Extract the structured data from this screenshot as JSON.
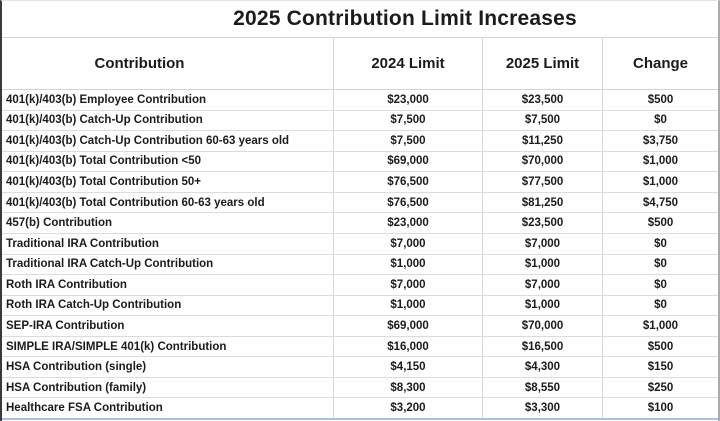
{
  "chart_data": {
    "type": "table",
    "title": "2025 Contribution Limit Increases",
    "columns": [
      "Contribution",
      "2024 Limit",
      "2025 Limit",
      "Change"
    ],
    "rows": [
      [
        "401(k)/403(b) Employee Contribution",
        "$23,000",
        "$23,500",
        "$500"
      ],
      [
        "401(k)/403(b) Catch-Up Contribution",
        "$7,500",
        "$7,500",
        "$0"
      ],
      [
        "401(k)/403(b) Catch-Up Contribution 60-63 years old",
        "$7,500",
        "$11,250",
        "$3,750"
      ],
      [
        "401(k)/403(b) Total Contribution <50",
        "$69,000",
        "$70,000",
        "$1,000"
      ],
      [
        "401(k)/403(b) Total Contribution 50+",
        "$76,500",
        "$77,500",
        "$1,000"
      ],
      [
        "401(k)/403(b) Total Contribution 60-63 years old",
        "$76,500",
        "$81,250",
        "$4,750"
      ],
      [
        "457(b) Contribution",
        "$23,000",
        "$23,500",
        "$500"
      ],
      [
        "Traditional IRA Contribution",
        "$7,000",
        "$7,000",
        "$0"
      ],
      [
        "Traditional IRA Catch-Up Contribution",
        "$1,000",
        "$1,000",
        "$0"
      ],
      [
        "Roth IRA Contribution",
        "$7,000",
        "$7,000",
        "$0"
      ],
      [
        "Roth IRA Catch-Up Contribution",
        "$1,000",
        "$1,000",
        "$0"
      ],
      [
        "SEP-IRA Contribution",
        "$69,000",
        "$70,000",
        "$1,000"
      ],
      [
        "SIMPLE IRA/SIMPLE 401(k) Contribution",
        "$16,000",
        "$16,500",
        "$500"
      ],
      [
        "HSA Contribution (single)",
        "$4,150",
        "$4,300",
        "$150"
      ],
      [
        "HSA Contribution (family)",
        "$8,300",
        "$8,550",
        "$250"
      ],
      [
        "Healthcare FSA Contribution",
        "$3,200",
        "$3,300",
        "$100"
      ]
    ],
    "layout": {
      "grid": "on",
      "value_alignment": "center",
      "label_alignment": "left"
    }
  },
  "colors": {
    "background": "#ffffff",
    "text": "#1b1b1b",
    "gridline": "#d4d4d4",
    "bottom_edge_line": "#a7c1e8",
    "left_edge": "#3a3a3a",
    "right_edge": "#ababab"
  }
}
